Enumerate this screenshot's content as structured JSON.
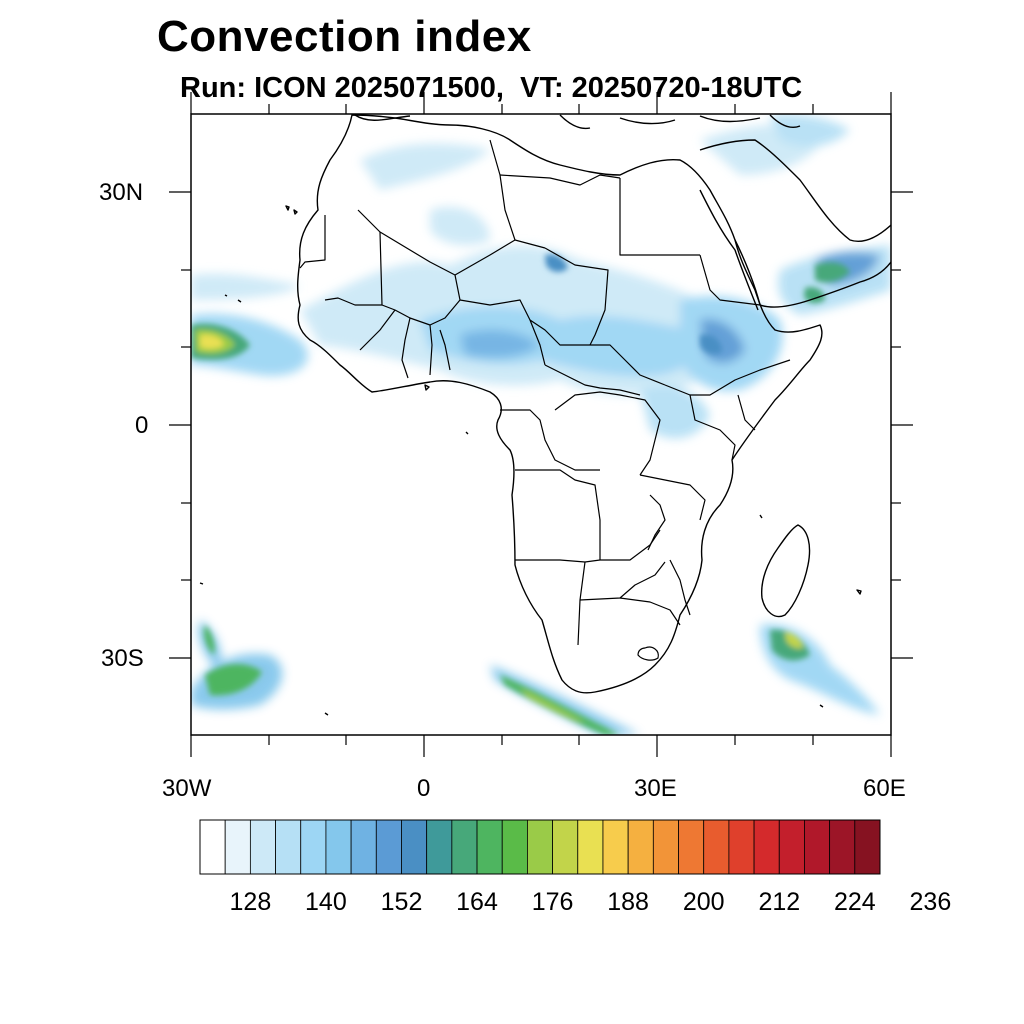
{
  "title": "Convection index",
  "subtitle": "Run: ICON 2025071500,  VT: 20250720-18UTC",
  "axes": {
    "lat_labels": [
      "30N",
      "0",
      "30S"
    ],
    "lon_labels": [
      "30W",
      "0",
      "30E",
      "60E"
    ],
    "lon_range": [
      -30,
      60
    ],
    "lat_range": [
      -40,
      40
    ]
  },
  "colorbar": {
    "labels": [
      "128",
      "140",
      "152",
      "164",
      "176",
      "188",
      "200",
      "212",
      "224",
      "236"
    ],
    "colors": [
      "#ffffff",
      "#e8f4fb",
      "#cde9f7",
      "#b6e0f5",
      "#9dd6f4",
      "#84c7ec",
      "#6fb2e3",
      "#5b9bd5",
      "#4a8fc4",
      "#3f9a9a",
      "#47a87a",
      "#4eb560",
      "#5abb48",
      "#9acb48",
      "#c2d44a",
      "#e9e052",
      "#f7cc4c",
      "#f5b040",
      "#f29438",
      "#ee7833",
      "#e85c2e",
      "#df402c",
      "#d42a2c",
      "#c31f2c",
      "#b0182a",
      "#9c1527",
      "#861221"
    ]
  },
  "features": {
    "coastline": "africa-coastline",
    "borders": "country-borders",
    "field": "convection-index-field"
  }
}
